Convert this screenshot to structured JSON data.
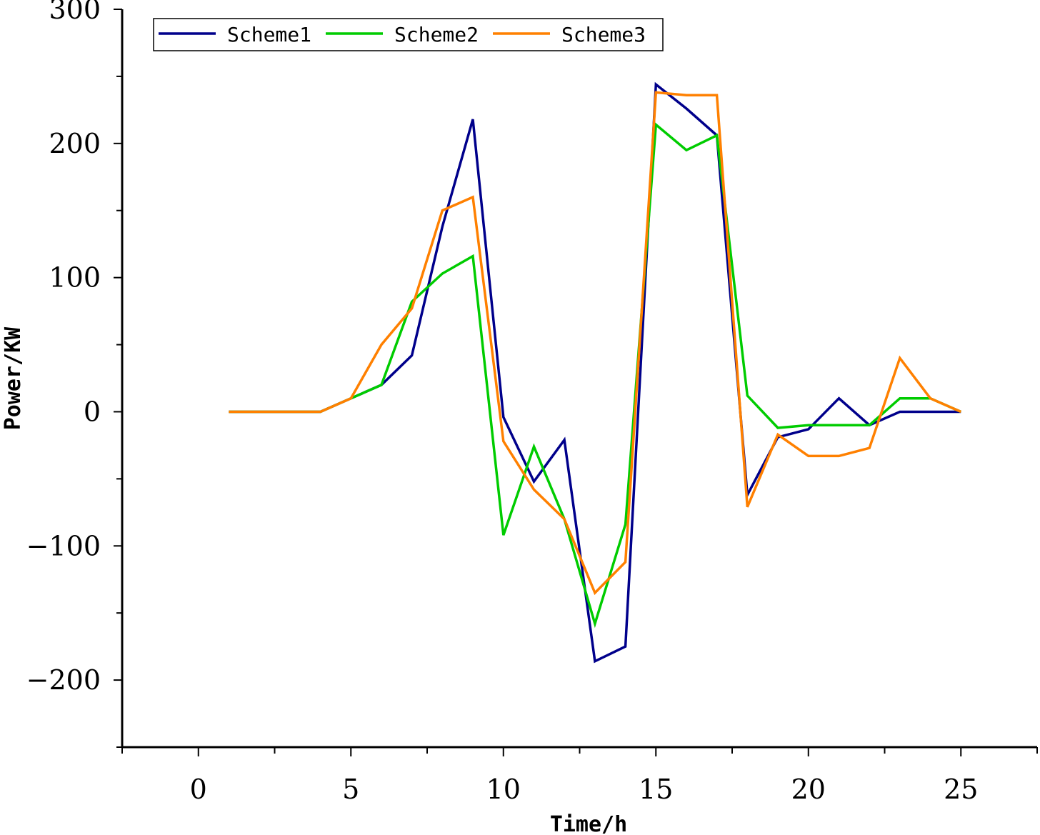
{
  "chart_data": {
    "type": "line",
    "xlabel": "Time/h",
    "ylabel": "Power/KW",
    "xlim": [
      -2.5,
      27.5
    ],
    "ylim": [
      -250,
      300
    ],
    "x_ticks": [
      0,
      5,
      10,
      15,
      20,
      25
    ],
    "y_ticks": [
      -200,
      -100,
      0,
      100,
      200,
      300
    ],
    "x_tick_labels": [
      "0",
      "5",
      "10",
      "15",
      "20",
      "25"
    ],
    "y_tick_labels": [
      "−200",
      "−100",
      "0",
      "100",
      "200",
      "300"
    ],
    "grid": false,
    "legend_position": "top-left",
    "x": [
      1,
      2,
      3,
      4,
      5,
      6,
      7,
      8,
      9,
      10,
      11,
      12,
      13,
      14,
      15,
      16,
      17,
      18,
      19,
      20,
      21,
      22,
      23,
      24,
      25
    ],
    "series": [
      {
        "name": "Scheme1",
        "color": "#00008B",
        "values": [
          0,
          0,
          0,
          0,
          10,
          20,
          42,
          138,
          218,
          -4,
          -52,
          -21,
          -186,
          -175,
          244,
          226,
          206,
          -62,
          -19,
          -13,
          10,
          -10,
          0,
          0,
          0
        ]
      },
      {
        "name": "Scheme2",
        "color": "#00CC00",
        "values": [
          0,
          0,
          0,
          0,
          10,
          20,
          82,
          103,
          116,
          -92,
          -26,
          -80,
          -158,
          -84,
          214,
          195,
          206,
          12,
          -12,
          -10,
          -10,
          -10,
          10,
          10,
          0
        ]
      },
      {
        "name": "Scheme3",
        "color": "#FF8000",
        "values": [
          0,
          0,
          0,
          0,
          10,
          50,
          77,
          150,
          160,
          -22,
          -58,
          -80,
          -135,
          -112,
          238,
          236,
          236,
          -71,
          -17,
          -33,
          -33,
          -27,
          40,
          10,
          0
        ]
      }
    ]
  }
}
